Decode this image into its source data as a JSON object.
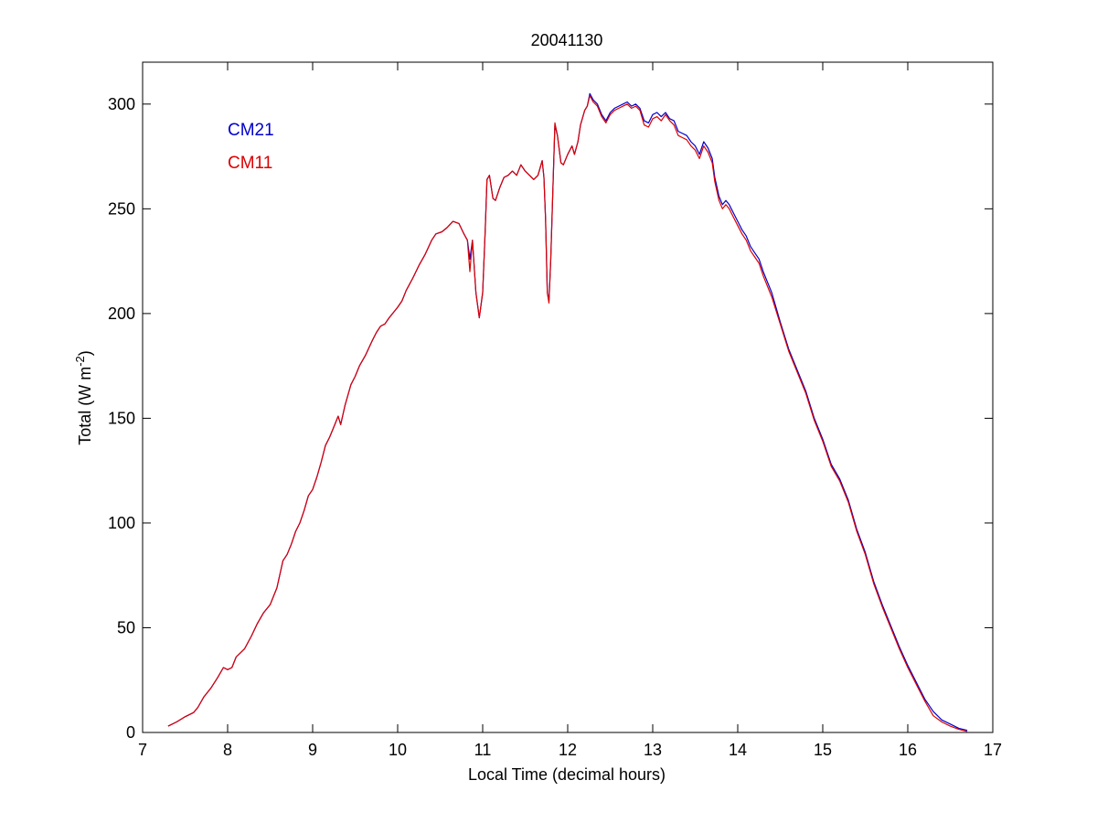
{
  "chart_data": {
    "type": "line",
    "title": "20041130",
    "xlabel": "Local Time (decimal hours)",
    "ylabel": {
      "main": "Total (W m",
      "exp": "-2",
      "close": ")"
    },
    "xlim": [
      7,
      17
    ],
    "ylim": [
      0,
      320
    ],
    "xticks": [
      7,
      8,
      9,
      10,
      11,
      12,
      13,
      14,
      15,
      16,
      17
    ],
    "yticks": [
      0,
      50,
      100,
      150,
      200,
      250,
      300
    ],
    "grid": false,
    "legend_position": "top-left",
    "series": [
      {
        "name": "CM21",
        "color": "#0000cc",
        "points": [
          [
            7.3,
            3
          ],
          [
            7.4,
            5
          ],
          [
            7.5,
            7.5
          ],
          [
            7.6,
            9.5
          ],
          [
            7.65,
            12
          ],
          [
            7.72,
            17
          ],
          [
            7.8,
            21
          ],
          [
            7.88,
            26
          ],
          [
            7.95,
            31
          ],
          [
            8.0,
            30
          ],
          [
            8.05,
            31
          ],
          [
            8.1,
            36
          ],
          [
            8.2,
            40
          ],
          [
            8.28,
            46
          ],
          [
            8.35,
            52
          ],
          [
            8.42,
            57
          ],
          [
            8.5,
            61
          ],
          [
            8.58,
            69
          ],
          [
            8.65,
            82
          ],
          [
            8.7,
            85
          ],
          [
            8.75,
            90
          ],
          [
            8.8,
            96
          ],
          [
            8.85,
            100
          ],
          [
            8.9,
            106
          ],
          [
            8.95,
            113
          ],
          [
            9.0,
            116
          ],
          [
            9.05,
            122
          ],
          [
            9.1,
            129
          ],
          [
            9.15,
            137
          ],
          [
            9.2,
            141
          ],
          [
            9.25,
            146
          ],
          [
            9.3,
            151
          ],
          [
            9.33,
            147
          ],
          [
            9.38,
            156
          ],
          [
            9.45,
            166
          ],
          [
            9.5,
            170
          ],
          [
            9.55,
            175
          ],
          [
            9.62,
            180
          ],
          [
            9.7,
            187
          ],
          [
            9.75,
            191
          ],
          [
            9.8,
            194
          ],
          [
            9.85,
            195
          ],
          [
            9.9,
            198
          ],
          [
            10.0,
            203
          ],
          [
            10.05,
            206
          ],
          [
            10.1,
            211
          ],
          [
            10.18,
            217
          ],
          [
            10.25,
            223
          ],
          [
            10.32,
            228
          ],
          [
            10.4,
            235
          ],
          [
            10.45,
            238
          ],
          [
            10.52,
            239
          ],
          [
            10.58,
            241
          ],
          [
            10.65,
            244
          ],
          [
            10.72,
            243
          ],
          [
            10.78,
            238
          ],
          [
            10.82,
            235
          ],
          [
            10.85,
            226
          ],
          [
            10.88,
            235
          ],
          [
            10.92,
            210
          ],
          [
            10.96,
            198
          ],
          [
            11.0,
            210
          ],
          [
            11.03,
            240
          ],
          [
            11.05,
            264
          ],
          [
            11.08,
            266
          ],
          [
            11.12,
            255
          ],
          [
            11.15,
            254
          ],
          [
            11.2,
            260
          ],
          [
            11.25,
            265
          ],
          [
            11.3,
            266
          ],
          [
            11.35,
            268
          ],
          [
            11.4,
            266
          ],
          [
            11.45,
            271
          ],
          [
            11.5,
            268
          ],
          [
            11.55,
            266
          ],
          [
            11.6,
            264
          ],
          [
            11.65,
            266
          ],
          [
            11.7,
            273
          ],
          [
            11.72,
            265
          ],
          [
            11.74,
            245
          ],
          [
            11.76,
            210
          ],
          [
            11.78,
            206
          ],
          [
            11.8,
            225
          ],
          [
            11.83,
            265
          ],
          [
            11.85,
            290
          ],
          [
            11.88,
            285
          ],
          [
            11.92,
            272
          ],
          [
            11.95,
            271
          ],
          [
            12.0,
            276
          ],
          [
            12.05,
            280
          ],
          [
            12.08,
            276
          ],
          [
            12.12,
            282
          ],
          [
            12.15,
            290
          ],
          [
            12.2,
            297
          ],
          [
            12.23,
            299
          ],
          [
            12.26,
            305
          ],
          [
            12.3,
            302
          ],
          [
            12.35,
            300
          ],
          [
            12.4,
            295
          ],
          [
            12.45,
            292
          ],
          [
            12.5,
            296
          ],
          [
            12.55,
            298
          ],
          [
            12.6,
            299
          ],
          [
            12.65,
            300
          ],
          [
            12.7,
            301
          ],
          [
            12.75,
            299
          ],
          [
            12.8,
            300
          ],
          [
            12.85,
            298
          ],
          [
            12.9,
            292
          ],
          [
            12.95,
            291
          ],
          [
            13.0,
            295
          ],
          [
            13.05,
            296
          ],
          [
            13.1,
            294
          ],
          [
            13.15,
            296
          ],
          [
            13.2,
            293
          ],
          [
            13.25,
            292
          ],
          [
            13.3,
            287
          ],
          [
            13.35,
            286
          ],
          [
            13.4,
            285
          ],
          [
            13.45,
            282
          ],
          [
            13.5,
            280
          ],
          [
            13.55,
            276
          ],
          [
            13.6,
            282
          ],
          [
            13.65,
            279
          ],
          [
            13.7,
            274
          ],
          [
            13.73,
            265
          ],
          [
            13.78,
            256
          ],
          [
            13.82,
            252
          ],
          [
            13.86,
            254
          ],
          [
            13.9,
            252
          ],
          [
            13.95,
            248
          ],
          [
            14.0,
            244
          ],
          [
            14.05,
            240
          ],
          [
            14.1,
            237
          ],
          [
            14.15,
            232
          ],
          [
            14.2,
            229
          ],
          [
            14.25,
            226
          ],
          [
            14.3,
            220
          ],
          [
            14.4,
            210
          ],
          [
            14.5,
            196
          ],
          [
            14.6,
            183
          ],
          [
            14.7,
            173
          ],
          [
            14.8,
            163
          ],
          [
            14.9,
            150
          ],
          [
            15.0,
            140
          ],
          [
            15.1,
            128
          ],
          [
            15.2,
            121
          ],
          [
            15.3,
            111
          ],
          [
            15.4,
            97
          ],
          [
            15.5,
            86
          ],
          [
            15.6,
            72
          ],
          [
            15.7,
            61
          ],
          [
            15.8,
            51
          ],
          [
            15.9,
            41
          ],
          [
            16.0,
            32
          ],
          [
            16.1,
            24
          ],
          [
            16.2,
            16
          ],
          [
            16.3,
            10
          ],
          [
            16.4,
            6
          ],
          [
            16.5,
            4
          ],
          [
            16.6,
            2
          ],
          [
            16.7,
            1
          ]
        ]
      },
      {
        "name": "CM11",
        "color": "#dd0000",
        "points": [
          [
            7.3,
            3
          ],
          [
            7.4,
            5
          ],
          [
            7.5,
            7.5
          ],
          [
            7.6,
            9.5
          ],
          [
            7.65,
            12
          ],
          [
            7.72,
            17
          ],
          [
            7.8,
            21
          ],
          [
            7.88,
            26
          ],
          [
            7.95,
            31
          ],
          [
            8.0,
            30
          ],
          [
            8.05,
            31
          ],
          [
            8.1,
            36
          ],
          [
            8.2,
            40
          ],
          [
            8.28,
            46
          ],
          [
            8.35,
            52
          ],
          [
            8.42,
            57
          ],
          [
            8.5,
            61
          ],
          [
            8.58,
            69
          ],
          [
            8.65,
            82
          ],
          [
            8.7,
            85
          ],
          [
            8.75,
            90
          ],
          [
            8.8,
            96
          ],
          [
            8.85,
            100
          ],
          [
            8.9,
            106
          ],
          [
            8.95,
            113
          ],
          [
            9.0,
            116
          ],
          [
            9.05,
            122
          ],
          [
            9.1,
            129
          ],
          [
            9.15,
            137
          ],
          [
            9.2,
            141
          ],
          [
            9.25,
            146
          ],
          [
            9.3,
            151
          ],
          [
            9.33,
            147
          ],
          [
            9.38,
            156
          ],
          [
            9.45,
            166
          ],
          [
            9.5,
            170
          ],
          [
            9.55,
            175
          ],
          [
            9.62,
            180
          ],
          [
            9.7,
            187
          ],
          [
            9.75,
            191
          ],
          [
            9.8,
            194
          ],
          [
            9.85,
            195
          ],
          [
            9.9,
            198
          ],
          [
            10.0,
            203
          ],
          [
            10.05,
            206
          ],
          [
            10.1,
            211
          ],
          [
            10.18,
            217
          ],
          [
            10.25,
            223
          ],
          [
            10.32,
            228
          ],
          [
            10.4,
            235
          ],
          [
            10.45,
            238
          ],
          [
            10.52,
            239
          ],
          [
            10.58,
            241
          ],
          [
            10.65,
            244
          ],
          [
            10.72,
            243
          ],
          [
            10.78,
            238
          ],
          [
            10.82,
            235
          ],
          [
            10.85,
            220
          ],
          [
            10.88,
            235
          ],
          [
            10.92,
            210
          ],
          [
            10.96,
            198
          ],
          [
            11.0,
            210
          ],
          [
            11.03,
            240
          ],
          [
            11.05,
            264
          ],
          [
            11.08,
            266
          ],
          [
            11.12,
            255
          ],
          [
            11.15,
            254
          ],
          [
            11.2,
            260
          ],
          [
            11.25,
            265
          ],
          [
            11.3,
            266
          ],
          [
            11.35,
            268
          ],
          [
            11.4,
            266
          ],
          [
            11.45,
            271
          ],
          [
            11.5,
            268
          ],
          [
            11.55,
            266
          ],
          [
            11.6,
            264
          ],
          [
            11.65,
            266
          ],
          [
            11.7,
            273
          ],
          [
            11.72,
            265
          ],
          [
            11.74,
            245
          ],
          [
            11.76,
            210
          ],
          [
            11.78,
            205
          ],
          [
            11.8,
            225
          ],
          [
            11.83,
            265
          ],
          [
            11.85,
            291
          ],
          [
            11.88,
            285
          ],
          [
            11.92,
            272
          ],
          [
            11.95,
            271
          ],
          [
            12.0,
            276
          ],
          [
            12.05,
            280
          ],
          [
            12.08,
            276
          ],
          [
            12.12,
            282
          ],
          [
            12.15,
            290
          ],
          [
            12.2,
            297
          ],
          [
            12.23,
            299
          ],
          [
            12.26,
            304
          ],
          [
            12.3,
            301
          ],
          [
            12.35,
            299
          ],
          [
            12.4,
            294
          ],
          [
            12.45,
            291
          ],
          [
            12.5,
            295
          ],
          [
            12.55,
            297
          ],
          [
            12.6,
            298
          ],
          [
            12.65,
            299
          ],
          [
            12.7,
            300
          ],
          [
            12.75,
            298
          ],
          [
            12.8,
            299
          ],
          [
            12.85,
            297
          ],
          [
            12.9,
            290
          ],
          [
            12.95,
            289
          ],
          [
            13.0,
            293
          ],
          [
            13.05,
            294
          ],
          [
            13.1,
            292
          ],
          [
            13.15,
            295
          ],
          [
            13.2,
            292
          ],
          [
            13.25,
            290
          ],
          [
            13.3,
            285
          ],
          [
            13.35,
            284
          ],
          [
            13.4,
            283
          ],
          [
            13.45,
            280
          ],
          [
            13.5,
            278
          ],
          [
            13.55,
            274
          ],
          [
            13.6,
            280
          ],
          [
            13.65,
            277
          ],
          [
            13.7,
            272
          ],
          [
            13.73,
            263
          ],
          [
            13.78,
            254
          ],
          [
            13.82,
            250
          ],
          [
            13.86,
            252
          ],
          [
            13.9,
            250
          ],
          [
            13.95,
            246
          ],
          [
            14.0,
            242
          ],
          [
            14.05,
            238
          ],
          [
            14.1,
            235
          ],
          [
            14.15,
            230
          ],
          [
            14.2,
            227
          ],
          [
            14.25,
            224
          ],
          [
            14.3,
            218
          ],
          [
            14.4,
            208
          ],
          [
            14.5,
            195
          ],
          [
            14.6,
            182
          ],
          [
            14.7,
            172
          ],
          [
            14.8,
            162
          ],
          [
            14.9,
            149
          ],
          [
            15.0,
            139
          ],
          [
            15.1,
            127
          ],
          [
            15.2,
            120
          ],
          [
            15.3,
            110
          ],
          [
            15.4,
            96
          ],
          [
            15.5,
            85
          ],
          [
            15.6,
            71
          ],
          [
            15.7,
            60
          ],
          [
            15.8,
            50
          ],
          [
            15.9,
            40
          ],
          [
            16.0,
            31
          ],
          [
            16.1,
            23
          ],
          [
            16.2,
            15
          ],
          [
            16.3,
            8
          ],
          [
            16.4,
            5
          ],
          [
            16.5,
            3
          ],
          [
            16.6,
            1.5
          ],
          [
            16.7,
            0.5
          ]
        ]
      }
    ]
  }
}
